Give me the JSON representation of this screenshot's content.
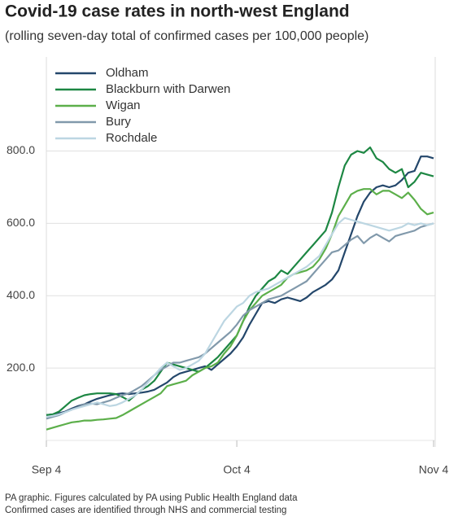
{
  "chart_data": {
    "type": "line",
    "title": "Covid-19 case rates in north-west England",
    "subtitle": "(rolling seven-day total of confirmed cases per 100,000 people)",
    "footnotes": [
      "PA graphic. Figures calculated by PA using Public Health England data",
      "Confirmed cases are identified through NHS and commercial testing"
    ],
    "categories": [
      "Sep 4",
      null,
      null,
      null,
      null,
      null,
      null,
      null,
      null,
      null,
      null,
      null,
      null,
      null,
      null,
      null,
      null,
      null,
      null,
      null,
      null,
      null,
      null,
      null,
      null,
      null,
      null,
      null,
      null,
      null,
      "Oct 4",
      null,
      null,
      null,
      null,
      null,
      null,
      null,
      null,
      null,
      null,
      null,
      null,
      null,
      null,
      null,
      null,
      null,
      null,
      null,
      null,
      null,
      null,
      null,
      null,
      null,
      null,
      null,
      null,
      null,
      null,
      "Nov 4"
    ],
    "ylim": [
      0,
      1060
    ],
    "yticks": [
      {
        "value": 200,
        "label": "200.0"
      },
      {
        "value": 400,
        "label": "400.0"
      },
      {
        "value": 600,
        "label": "600.0"
      },
      {
        "value": 800,
        "label": "800.0"
      }
    ],
    "grid": true,
    "series": [
      {
        "name": "Oldham",
        "color": "#24476b",
        "values": [
          70,
          72,
          75,
          80,
          88,
          95,
          100,
          108,
          115,
          120,
          125,
          128,
          130,
          128,
          130,
          132,
          135,
          140,
          150,
          160,
          175,
          185,
          190,
          195,
          200,
          205,
          195,
          210,
          225,
          240,
          260,
          285,
          320,
          350,
          380,
          385,
          380,
          390,
          395,
          390,
          385,
          395,
          410,
          420,
          430,
          445,
          470,
          520,
          570,
          620,
          660,
          685,
          700,
          705,
          700,
          705,
          720,
          740,
          745,
          785,
          785,
          780
        ]
      },
      {
        "name": "Blackburn with Darwen",
        "color": "#1d8743",
        "values": [
          70,
          72,
          80,
          95,
          110,
          118,
          125,
          128,
          130,
          130,
          130,
          128,
          120,
          110,
          125,
          140,
          150,
          165,
          190,
          215,
          210,
          205,
          200,
          195,
          190,
          200,
          215,
          230,
          250,
          270,
          290,
          330,
          370,
          400,
          420,
          440,
          450,
          470,
          460,
          480,
          500,
          520,
          540,
          560,
          580,
          630,
          700,
          760,
          790,
          800,
          795,
          810,
          780,
          770,
          750,
          740,
          750,
          700,
          715,
          740,
          735,
          730
        ]
      },
      {
        "name": "Wigan",
        "color": "#5caf4a",
        "values": [
          30,
          35,
          40,
          45,
          50,
          52,
          55,
          55,
          57,
          58,
          60,
          62,
          70,
          80,
          90,
          100,
          110,
          120,
          130,
          150,
          155,
          160,
          165,
          180,
          190,
          200,
          205,
          215,
          240,
          260,
          290,
          330,
          360,
          380,
          400,
          410,
          420,
          430,
          450,
          460,
          465,
          470,
          480,
          500,
          530,
          570,
          620,
          650,
          680,
          690,
          695,
          695,
          680,
          690,
          690,
          680,
          670,
          685,
          665,
          640,
          625,
          630
        ]
      },
      {
        "name": "Bury",
        "color": "#8199ab",
        "values": [
          60,
          65,
          70,
          78,
          85,
          92,
          100,
          102,
          100,
          105,
          110,
          118,
          125,
          130,
          140,
          150,
          165,
          180,
          195,
          205,
          215,
          215,
          220,
          225,
          230,
          240,
          255,
          270,
          285,
          300,
          320,
          345,
          360,
          370,
          380,
          390,
          395,
          400,
          410,
          420,
          430,
          440,
          460,
          480,
          500,
          520,
          525,
          540,
          555,
          565,
          545,
          560,
          570,
          560,
          550,
          565,
          570,
          575,
          580,
          590,
          595,
          600
        ]
      },
      {
        "name": "Rochdale",
        "color": "#bcd6e2",
        "values": [
          65,
          68,
          72,
          78,
          85,
          90,
          95,
          100,
          105,
          100,
          95,
          98,
          105,
          115,
          125,
          140,
          160,
          180,
          200,
          215,
          205,
          195,
          200,
          210,
          220,
          240,
          270,
          300,
          330,
          350,
          370,
          380,
          400,
          410,
          415,
          420,
          430,
          440,
          450,
          460,
          470,
          480,
          495,
          510,
          540,
          570,
          600,
          615,
          610,
          605,
          600,
          595,
          590,
          585,
          580,
          585,
          590,
          600,
          595,
          600,
          595,
          600
        ]
      }
    ]
  }
}
